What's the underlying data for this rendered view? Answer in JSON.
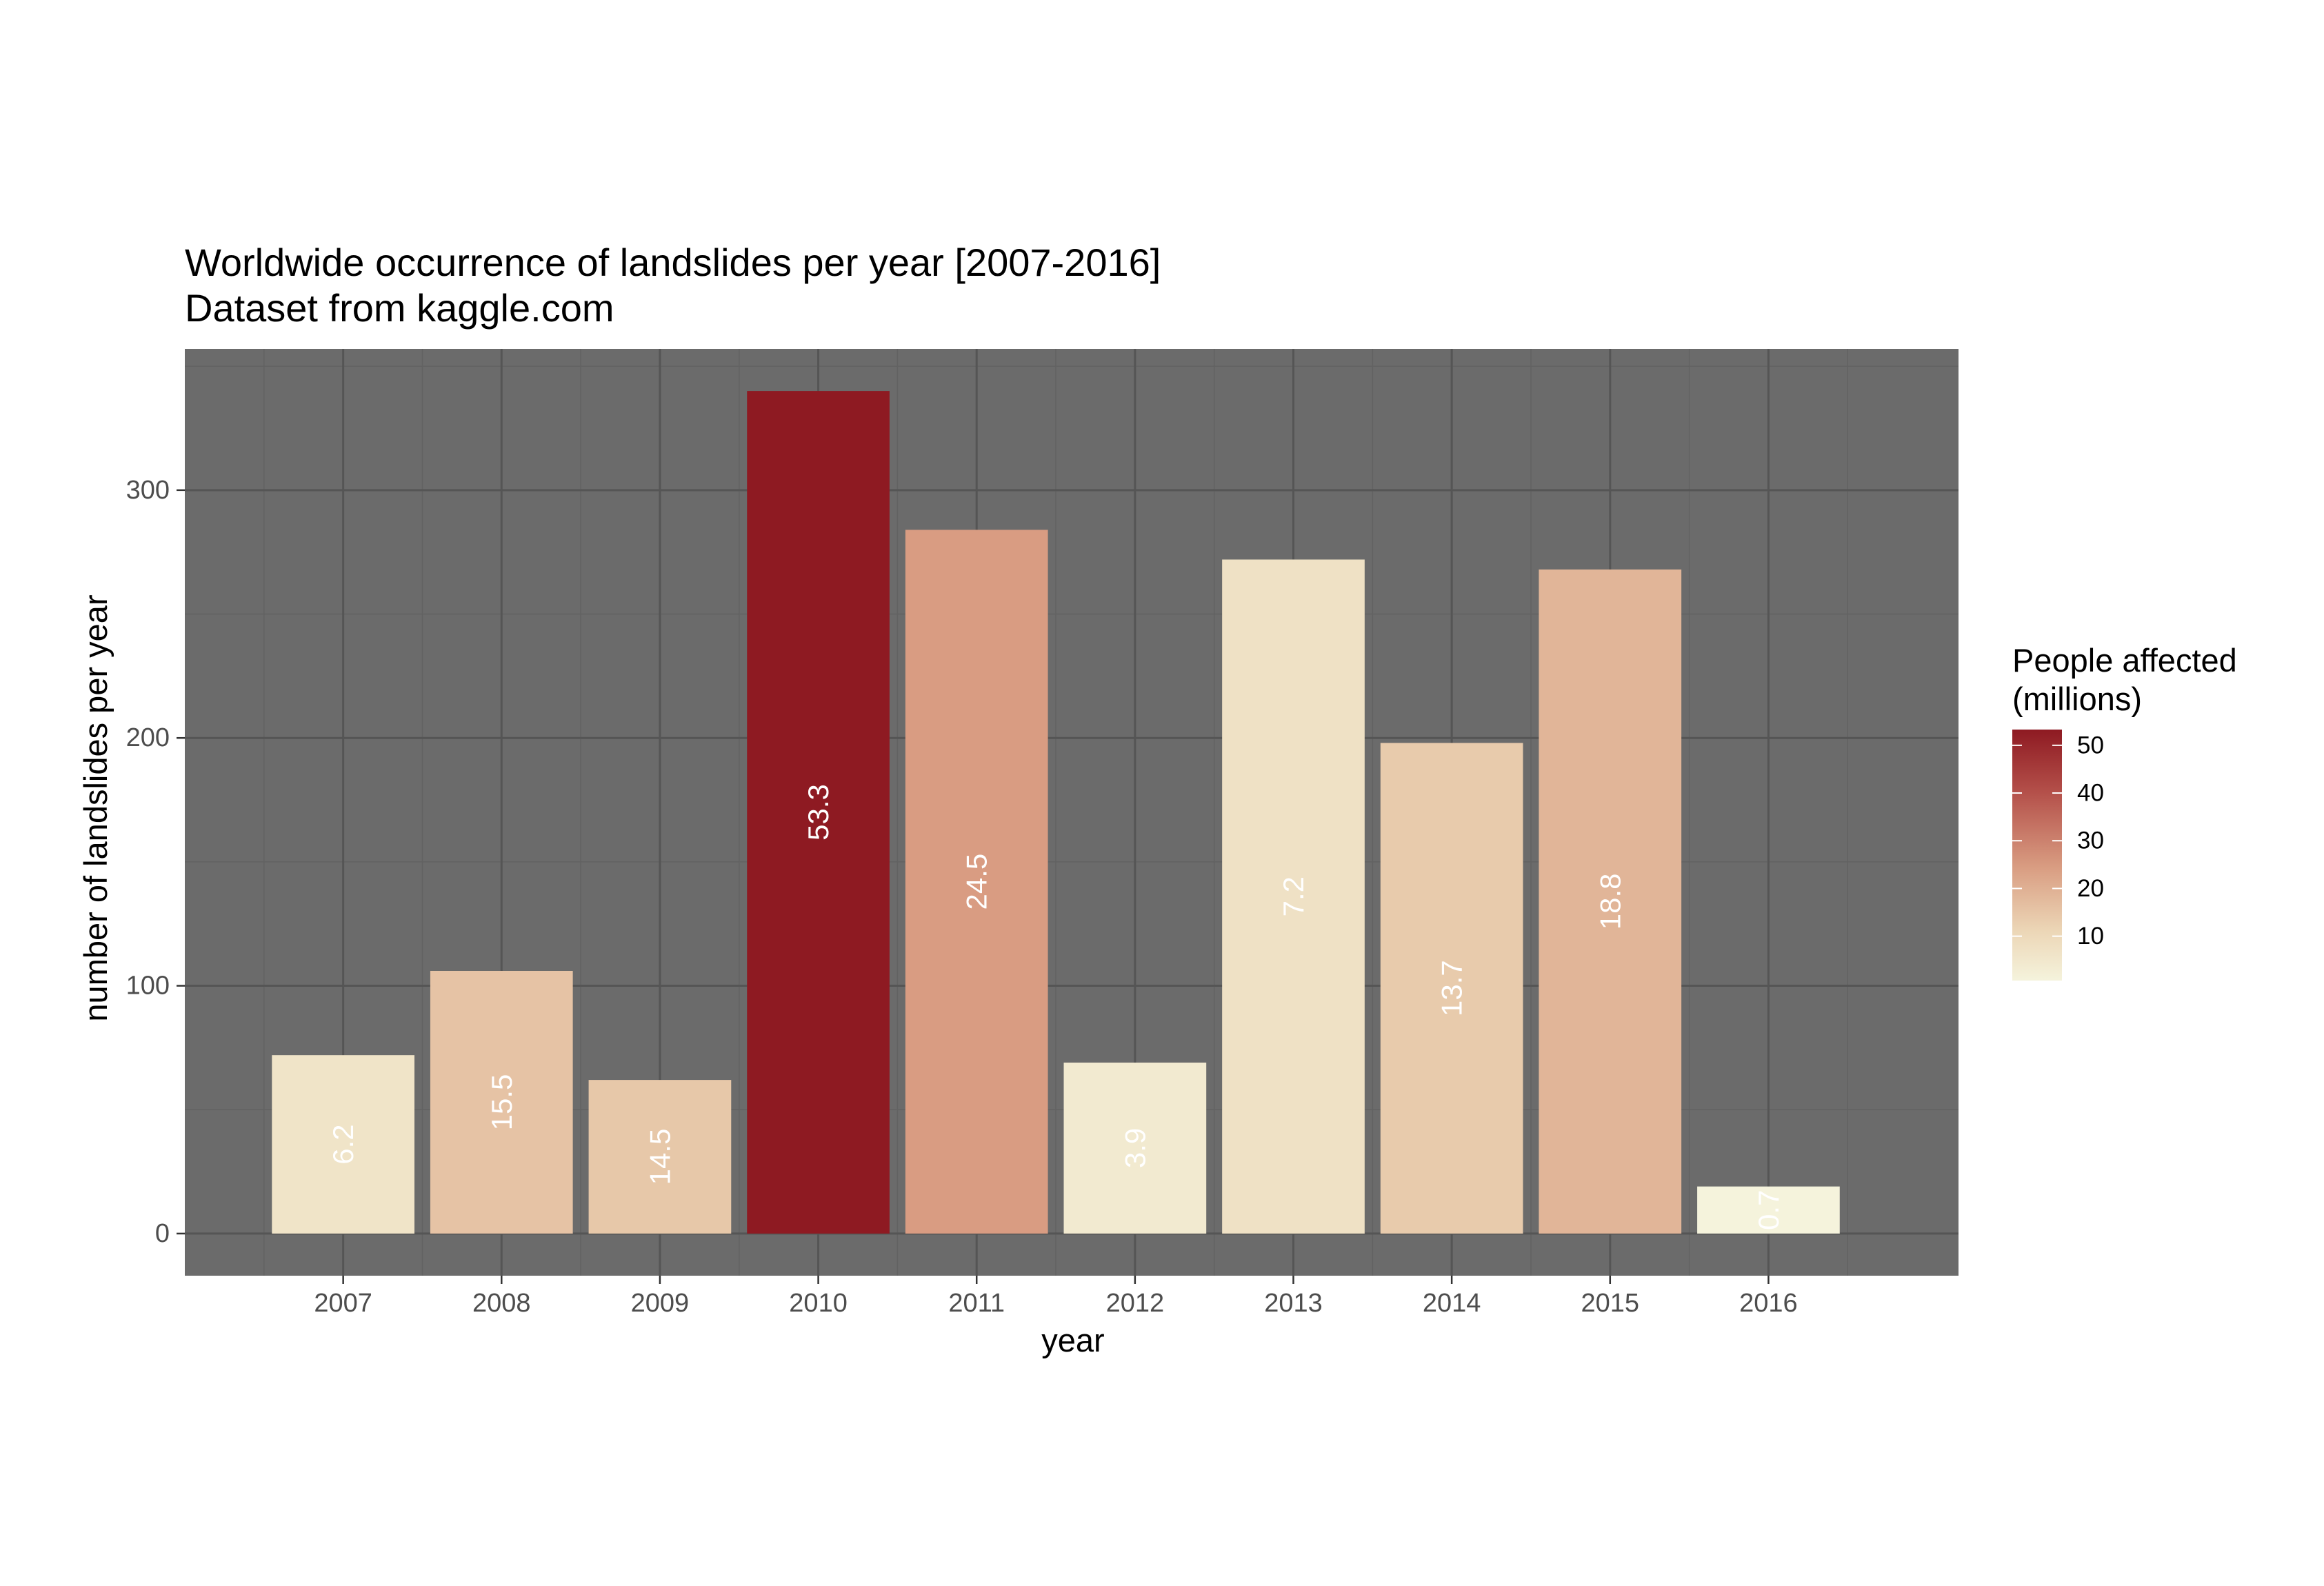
{
  "chart_data": {
    "type": "bar",
    "title": "Worldwide occurrence of landslides per year [2007-2016]",
    "subtitle": "Dataset from kaggle.com",
    "xlabel": "year",
    "ylabel": "number of landslides per year",
    "categories": [
      "2007",
      "2008",
      "2009",
      "2010",
      "2011",
      "2012",
      "2013",
      "2014",
      "2015",
      "2016"
    ],
    "values": [
      72,
      106,
      62,
      340,
      284,
      69,
      272,
      198,
      268,
      19
    ],
    "fill_values": [
      6.2,
      15.5,
      14.5,
      53.3,
      24.5,
      3.9,
      7.2,
      13.7,
      18.8,
      0.7
    ],
    "bar_labels": [
      "6.2",
      "15.5",
      "14.5",
      "53.3",
      "24.5",
      "3.9",
      "7.2",
      "13.7",
      "18.8",
      "0.7"
    ],
    "ylim": [
      -17,
      357
    ],
    "yticks": [
      0,
      100,
      200,
      300
    ],
    "grid": true,
    "panel_background": "#6b6b6b",
    "legend": {
      "title_line1": "People affected",
      "title_line2": "(millions)",
      "ticks": [
        10,
        20,
        30,
        40,
        50
      ],
      "range": [
        0.7,
        53.3
      ],
      "color_low": "#f5f3dc",
      "color_high": "#8e1a22",
      "placement": "right"
    }
  }
}
